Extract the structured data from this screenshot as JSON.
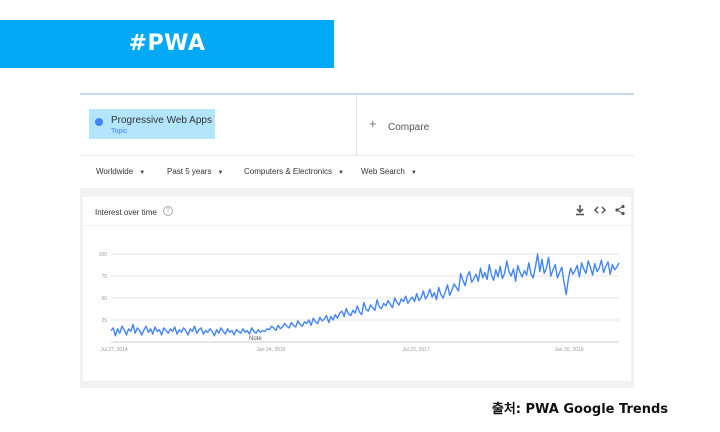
{
  "banner": {
    "text": "#PWA"
  },
  "search": {
    "term": "Progressive Web Apps",
    "term_type": "Topic",
    "compare_label": "Compare"
  },
  "filters": [
    "Worldwide",
    "Past 5 years",
    "Computers & Electronics",
    "Web Search"
  ],
  "card": {
    "title": "Interest over time",
    "icons": [
      "help-icon",
      "download-icon",
      "embed-icon",
      "share-icon"
    ]
  },
  "colors": {
    "banner": "#03a9f4",
    "series": "#4285f4",
    "term_highlight": "#b3e5fc"
  },
  "chart_data": {
    "type": "line",
    "y_ticks": [
      "100",
      "75",
      "50",
      "25"
    ],
    "x_ticks": [
      "Jul 27, 2014",
      "Jan 24, 2016",
      "Jul 23, 2017",
      "Jan 20, 2019"
    ],
    "annotation": "Note",
    "ylim": [
      0,
      100
    ],
    "grid": true,
    "series": [
      {
        "values": [
          13,
          16,
          7,
          15,
          10,
          18,
          14,
          8,
          15,
          12,
          20,
          10,
          16,
          13,
          8,
          14,
          18,
          11,
          15,
          9,
          17,
          12,
          14,
          8,
          16,
          13,
          10,
          15,
          12,
          17,
          9,
          14,
          11,
          16,
          13,
          8,
          15,
          12,
          18,
          10,
          14,
          16,
          9,
          13,
          11,
          15,
          12,
          7,
          14,
          10,
          16,
          12,
          9,
          15,
          11,
          13,
          8,
          14,
          12,
          10,
          15,
          11,
          13,
          9,
          16,
          12,
          10,
          14,
          11,
          13,
          12,
          15,
          14,
          18,
          16,
          13,
          19,
          15,
          17,
          21,
          18,
          16,
          22,
          19,
          17,
          24,
          20,
          18,
          23,
          21,
          25,
          19,
          27,
          23,
          21,
          28,
          24,
          26,
          30,
          22,
          29,
          25,
          31,
          27,
          33,
          35,
          29,
          38,
          32,
          30,
          36,
          33,
          41,
          34,
          31,
          45,
          37,
          35,
          42,
          39,
          36,
          48,
          40,
          38,
          44,
          41,
          47,
          43,
          39,
          50,
          45,
          42,
          49,
          46,
          52,
          44,
          48,
          51,
          46,
          55,
          47,
          50,
          58,
          49,
          53,
          60,
          51,
          56,
          48,
          62,
          54,
          50,
          57,
          65,
          53,
          59,
          66,
          62,
          58,
          78,
          70,
          64,
          75,
          80,
          68,
          72,
          77,
          69,
          84,
          73,
          79,
          71,
          88,
          76,
          70,
          82,
          74,
          86,
          72,
          78,
          92,
          80,
          75,
          83,
          69,
          87,
          79,
          74,
          81,
          76,
          90,
          77,
          73,
          85,
          100,
          80,
          94,
          78,
          84,
          96,
          75,
          82,
          88,
          73,
          79,
          85,
          68,
          54,
          72,
          84,
          77,
          81,
          87,
          74,
          90,
          83,
          78,
          92,
          85,
          76,
          89,
          80,
          84,
          93,
          79,
          86,
          91,
          77,
          88,
          82,
          85,
          90
        ]
      }
    ]
  },
  "source": {
    "text": "출처: PWA Google  Trends"
  }
}
